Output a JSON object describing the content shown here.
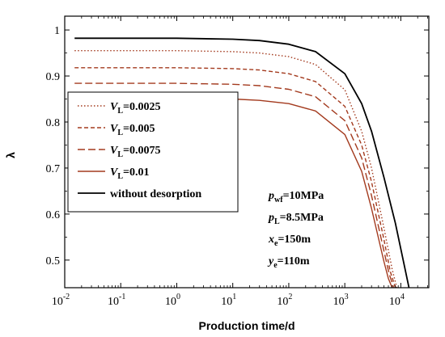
{
  "chart_data": {
    "type": "line",
    "title": "",
    "xlabel": "Production time/d",
    "ylabel": "λ",
    "x_scale": "log",
    "xlim": [
      0.01,
      31623
    ],
    "ylim": [
      0.44,
      1.03
    ],
    "x_tick_bases": [
      "10",
      "10",
      "10",
      "10",
      "10",
      "10",
      "10"
    ],
    "x_tick_exponents": [
      "-2",
      "-1",
      "0",
      "1",
      "2",
      "3",
      "4"
    ],
    "x_tick_values": [
      0.01,
      0.1,
      1,
      10,
      100,
      1000,
      10000
    ],
    "y_ticks": [
      "0.5",
      "0.6",
      "0.7",
      "0.8",
      "0.9",
      "1"
    ],
    "y_tick_values": [
      0.5,
      0.6,
      0.7,
      0.8,
      0.9,
      1.0
    ],
    "legend_position": "left",
    "series": [
      {
        "name": "V_L=0.0025",
        "label_var": "V",
        "label_sub": "L",
        "label_rest": "=0.0025",
        "color": "#a33a1e",
        "dash": "dotted",
        "x": [
          0.015,
          1,
          10,
          30,
          100,
          300,
          1000,
          2000,
          3000,
          5000,
          7000,
          8500
        ],
        "y": [
          0.955,
          0.955,
          0.953,
          0.95,
          0.942,
          0.925,
          0.87,
          0.78,
          0.7,
          0.57,
          0.48,
          0.44
        ]
      },
      {
        "name": "V_L=0.005",
        "label_var": "V",
        "label_sub": "L",
        "label_rest": "=0.005",
        "color": "#a33a1e",
        "dash": "short-dash",
        "x": [
          0.015,
          1,
          10,
          30,
          100,
          300,
          1000,
          2000,
          3000,
          5000,
          6500,
          8000
        ],
        "y": [
          0.918,
          0.918,
          0.916,
          0.913,
          0.905,
          0.888,
          0.834,
          0.75,
          0.67,
          0.545,
          0.475,
          0.44
        ]
      },
      {
        "name": "V_L=0.0075",
        "label_var": "V",
        "label_sub": "L",
        "label_rest": "=0.0075",
        "color": "#a33a1e",
        "dash": "long-dash",
        "x": [
          0.015,
          1,
          10,
          30,
          100,
          300,
          1000,
          2000,
          3000,
          5000,
          6200,
          7500
        ],
        "y": [
          0.884,
          0.884,
          0.882,
          0.879,
          0.871,
          0.855,
          0.803,
          0.722,
          0.64,
          0.52,
          0.47,
          0.44
        ]
      },
      {
        "name": "V_L=0.01",
        "label_var": "V",
        "label_sub": "L",
        "label_rest": "=0.01",
        "color": "#a33a1e",
        "dash": "solid",
        "x": [
          0.015,
          1,
          10,
          30,
          100,
          300,
          1000,
          2000,
          3000,
          5000,
          6000,
          7000
        ],
        "y": [
          0.852,
          0.852,
          0.85,
          0.847,
          0.84,
          0.824,
          0.773,
          0.693,
          0.612,
          0.497,
          0.46,
          0.44
        ]
      },
      {
        "name": "without desorption",
        "label_var": "",
        "label_sub": "",
        "label_rest": "without desorption",
        "color": "#000000",
        "dash": "solid",
        "x": [
          0.015,
          1,
          10,
          30,
          100,
          300,
          1000,
          2000,
          3000,
          5000,
          8000,
          11000,
          14000
        ],
        "y": [
          0.982,
          0.982,
          0.98,
          0.977,
          0.969,
          0.953,
          0.905,
          0.84,
          0.78,
          0.68,
          0.58,
          0.5,
          0.44
        ]
      }
    ],
    "annotations": [
      {
        "var": "p",
        "sub": "wf",
        "rest": "=10MPa"
      },
      {
        "var": "p",
        "sub": "L",
        "rest": "=8.5MPa"
      },
      {
        "var": "x",
        "sub": "e",
        "rest": "=150m"
      },
      {
        "var": "y",
        "sub": "e",
        "rest": "=110m"
      }
    ]
  }
}
